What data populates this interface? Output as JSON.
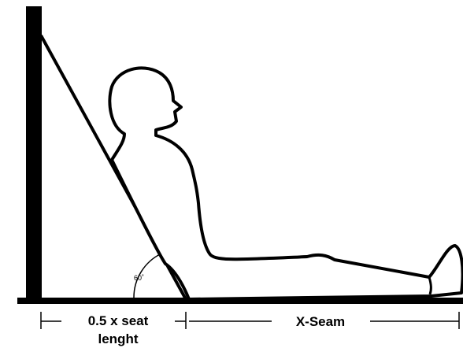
{
  "diagram": {
    "angle_label": "60˚",
    "seat_label_line1": "0.5 x seat",
    "seat_label_line2": "lenght",
    "seam_label": "X-Seam"
  }
}
